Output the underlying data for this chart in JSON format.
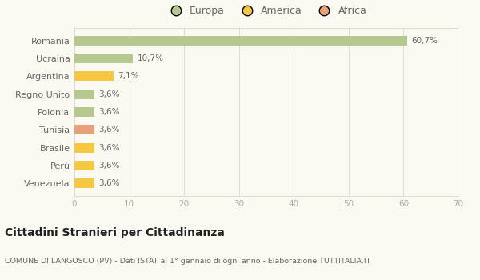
{
  "categories": [
    "Romania",
    "Ucraina",
    "Argentina",
    "Regno Unito",
    "Polonia",
    "Tunisia",
    "Brasile",
    "Perù",
    "Venezuela"
  ],
  "values": [
    60.7,
    10.7,
    7.1,
    3.6,
    3.6,
    3.6,
    3.6,
    3.6,
    3.6
  ],
  "labels": [
    "60,7%",
    "10,7%",
    "7,1%",
    "3,6%",
    "3,6%",
    "3,6%",
    "3,6%",
    "3,6%",
    "3,6%"
  ],
  "colors": [
    "#b5c98e",
    "#b5c98e",
    "#f5c842",
    "#b5c98e",
    "#b5c98e",
    "#e8a07a",
    "#f5c842",
    "#f5c842",
    "#f5c842"
  ],
  "legend_labels": [
    "Europa",
    "America",
    "Africa"
  ],
  "legend_colors": [
    "#b5c98e",
    "#f5c842",
    "#e8a07a"
  ],
  "xlim": [
    0,
    70
  ],
  "xticks": [
    0,
    10,
    20,
    30,
    40,
    50,
    60,
    70
  ],
  "title": "Cittadini Stranieri per Cittadinanza",
  "subtitle": "COMUNE DI LANGOSCO (PV) - Dati ISTAT al 1° gennaio di ogni anno - Elaborazione TUTTITALIA.IT",
  "background_color": "#fafaf3",
  "grid_color": "#e0e0d0"
}
